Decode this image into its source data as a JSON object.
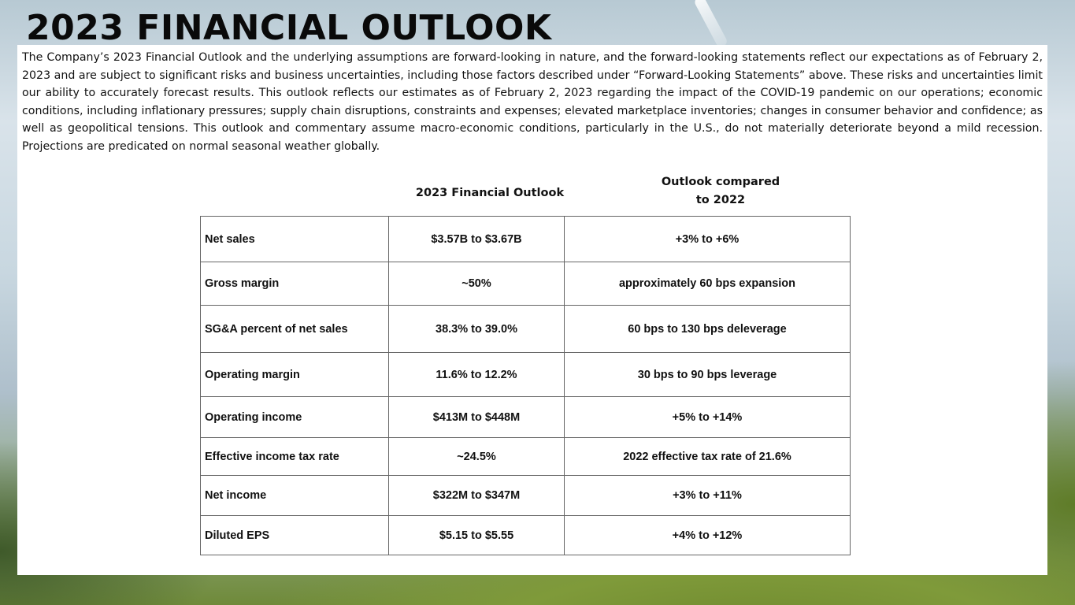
{
  "title": "2023 FINANCIAL OUTLOOK",
  "intro": "The Company’s 2023 Financial Outlook and the underlying assumptions are forward-looking in nature, and the forward-looking statements reflect our expectations as of February 2, 2023 and are subject to significant risks and business uncertainties, including those factors described under “Forward-Looking Statements” above. These risks and uncertainties limit our ability to accurately forecast results. This outlook reflects our estimates as of February 2, 2023 regarding the impact of the COVID-19 pandemic on our operations; economic conditions, including inflationary pressures; supply chain disruptions, constraints and expenses; elevated marketplace inventories; changes in consumer behavior and confidence; as well as geopolitical tensions. This outlook and commentary assume macro-economic conditions, particularly in the U.S., do not materially deteriorate beyond a mild recession. Projections are predicated on normal seasonal weather globally.",
  "table": {
    "headers": {
      "outlook": "2023 Financial Outlook",
      "compared_line1": "Outlook compared",
      "compared_line2": "to 2022"
    },
    "rows": [
      {
        "metric": "Net sales",
        "outlook": "$3.57B to $3.67B",
        "compared": "+3% to +6%"
      },
      {
        "metric": "Gross margin",
        "outlook": "~50%",
        "compared": "approximately 60 bps expansion"
      },
      {
        "metric": "SG&A percent of net sales",
        "outlook": "38.3% to 39.0%",
        "compared": "60 bps to 130 bps deleverage"
      },
      {
        "metric": "Operating margin",
        "outlook": "11.6% to 12.2%",
        "compared": "30 bps to 90 bps leverage"
      },
      {
        "metric": "Operating income",
        "outlook": "$413M to $448M",
        "compared": "+5% to +14%"
      },
      {
        "metric": "Effective income tax rate",
        "outlook": "~24.5%",
        "compared": "2022 effective tax rate of 21.6%"
      },
      {
        "metric": "Net income",
        "outlook": "$322M to $347M",
        "compared": "+3% to +11%"
      },
      {
        "metric": "Diluted EPS",
        "outlook": "$5.15 to $5.55",
        "compared": "+4% to +12%"
      }
    ]
  }
}
